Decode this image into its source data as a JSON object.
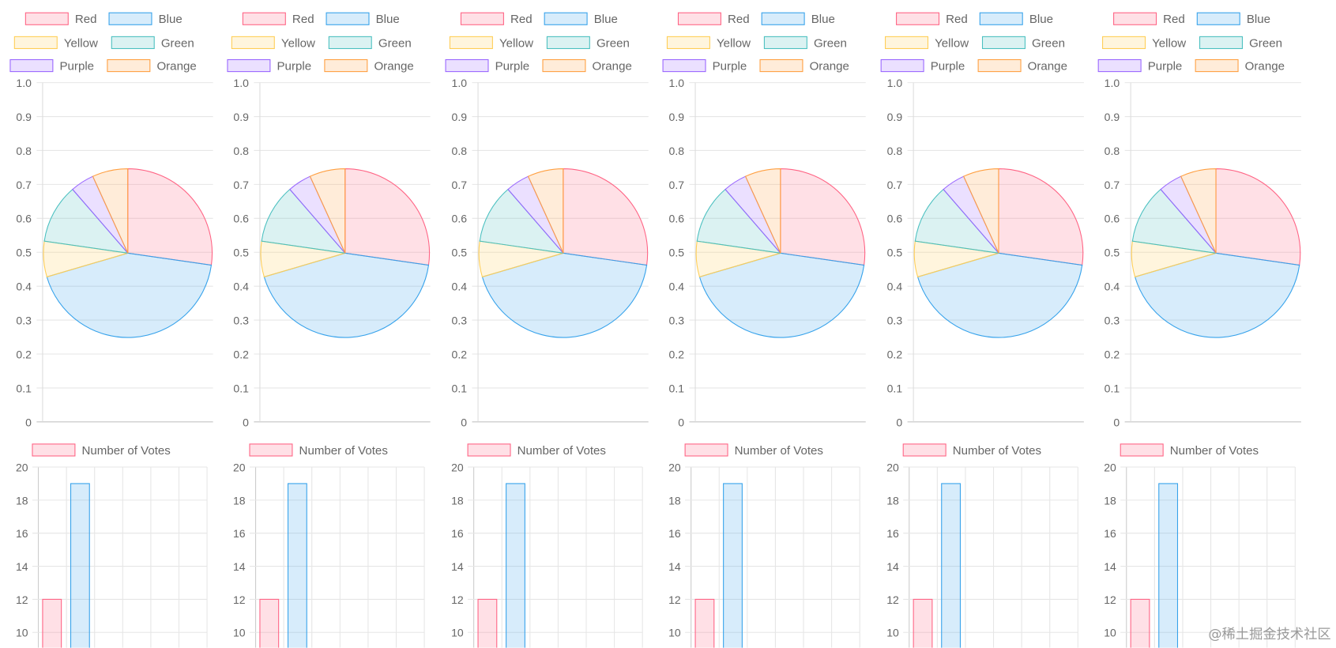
{
  "chart_data": [
    {
      "type": "pie",
      "repeat": 6,
      "legend_position": "top",
      "categories": [
        "Red",
        "Blue",
        "Yellow",
        "Green",
        "Purple",
        "Orange"
      ],
      "values": [
        12,
        19,
        3,
        5,
        2,
        3
      ],
      "colors": [
        "#ff6384",
        "#36a2eb",
        "#ffce56",
        "#4bc0c0",
        "#9966ff",
        "#ff9f40"
      ],
      "y_ticks": [
        "1.0",
        "0.9",
        "0.8",
        "0.7",
        "0.6",
        "0.5",
        "0.4",
        "0.3",
        "0.2",
        "0.1",
        "0"
      ],
      "ylim": [
        0,
        1
      ],
      "grid": true
    },
    {
      "type": "bar",
      "repeat": 6,
      "legend_position": "top",
      "series": [
        {
          "name": "Number of Votes",
          "values": [
            12,
            19,
            null,
            null,
            null,
            null
          ]
        }
      ],
      "colors": [
        "#ff6384",
        "#36a2eb",
        "#ffce56",
        "#4bc0c0",
        "#9966ff",
        "#ff9f40"
      ],
      "y_ticks": [
        "20",
        "18",
        "16",
        "14",
        "12",
        "10"
      ],
      "ylim_visible": [
        10,
        20
      ],
      "grid": true
    }
  ],
  "watermark": "@稀土掘金技术社区"
}
